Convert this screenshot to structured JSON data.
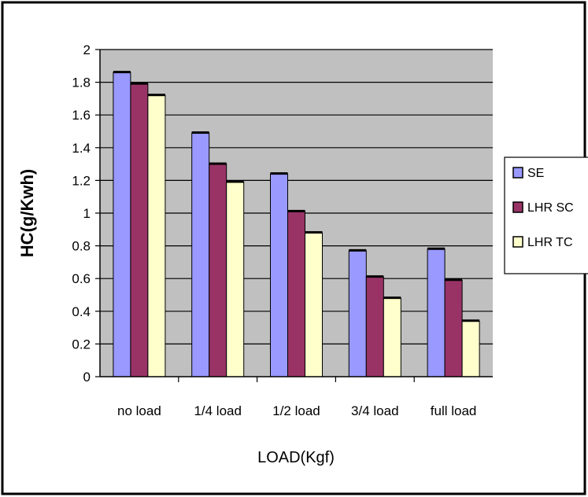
{
  "chart_data": {
    "type": "bar",
    "title": "",
    "xlabel": "LOAD(Kgf)",
    "ylabel": "HC(g/Kwh)",
    "categories": [
      "no load",
      "1/4 load",
      "1/2 load",
      "3/4 load",
      "full load"
    ],
    "series": [
      {
        "name": "SE",
        "values": [
          1.86,
          1.49,
          1.24,
          0.77,
          0.78
        ],
        "color": "#9999ff"
      },
      {
        "name": "LHR SC",
        "values": [
          1.79,
          1.3,
          1.01,
          0.61,
          0.59
        ],
        "color": "#993366"
      },
      {
        "name": "LHR TC",
        "values": [
          1.72,
          1.19,
          0.88,
          0.48,
          0.34
        ],
        "color": "#ffffcc"
      }
    ],
    "ylim": [
      0,
      2
    ],
    "yticks": [
      "0",
      "0.2",
      "0.4",
      "0.6",
      "0.8",
      "1",
      "1.2",
      "1.4",
      "1.6",
      "1.8",
      "2"
    ],
    "grid": true,
    "plot_background": "#c0c0c0",
    "legend_position": "right"
  }
}
